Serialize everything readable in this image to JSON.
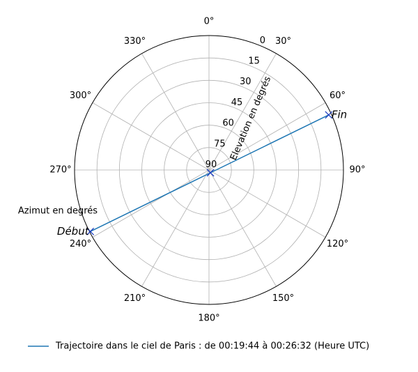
{
  "chart_data": {
    "type": "polar",
    "xlabel": "Azimut en degrés",
    "ylabel": "Elevation en degrés",
    "theta_zero": "N",
    "theta_direction": "clockwise",
    "xlim": [
      0,
      360
    ],
    "xticks": [
      {
        "value": 0,
        "label": "0°"
      },
      {
        "value": 30,
        "label": "30°"
      },
      {
        "value": 60,
        "label": "60°"
      },
      {
        "value": 90,
        "label": "90°"
      },
      {
        "value": 120,
        "label": "120°"
      },
      {
        "value": 150,
        "label": "150°"
      },
      {
        "value": 180,
        "label": "180°"
      },
      {
        "value": 210,
        "label": "210°"
      },
      {
        "value": 240,
        "label": "240°"
      },
      {
        "value": 270,
        "label": "270°"
      },
      {
        "value": 300,
        "label": "300°"
      },
      {
        "value": 330,
        "label": "330°"
      }
    ],
    "ylim": [
      90,
      0
    ],
    "yticks": [
      0,
      15,
      30,
      45,
      60,
      75,
      90
    ],
    "grid": true,
    "series": [
      {
        "name": "Trajectoire dans le ciel de Paris : de 00:19:44 à 00:26:32 (Heure UTC)",
        "color": "#1f77b4",
        "x": [
          242.6,
          153,
          65.3
        ],
        "values": [
          0.5,
          87.9,
          1.8
        ]
      }
    ],
    "annotations": [
      "Début",
      "Fin"
    ],
    "legend": "lower center"
  }
}
